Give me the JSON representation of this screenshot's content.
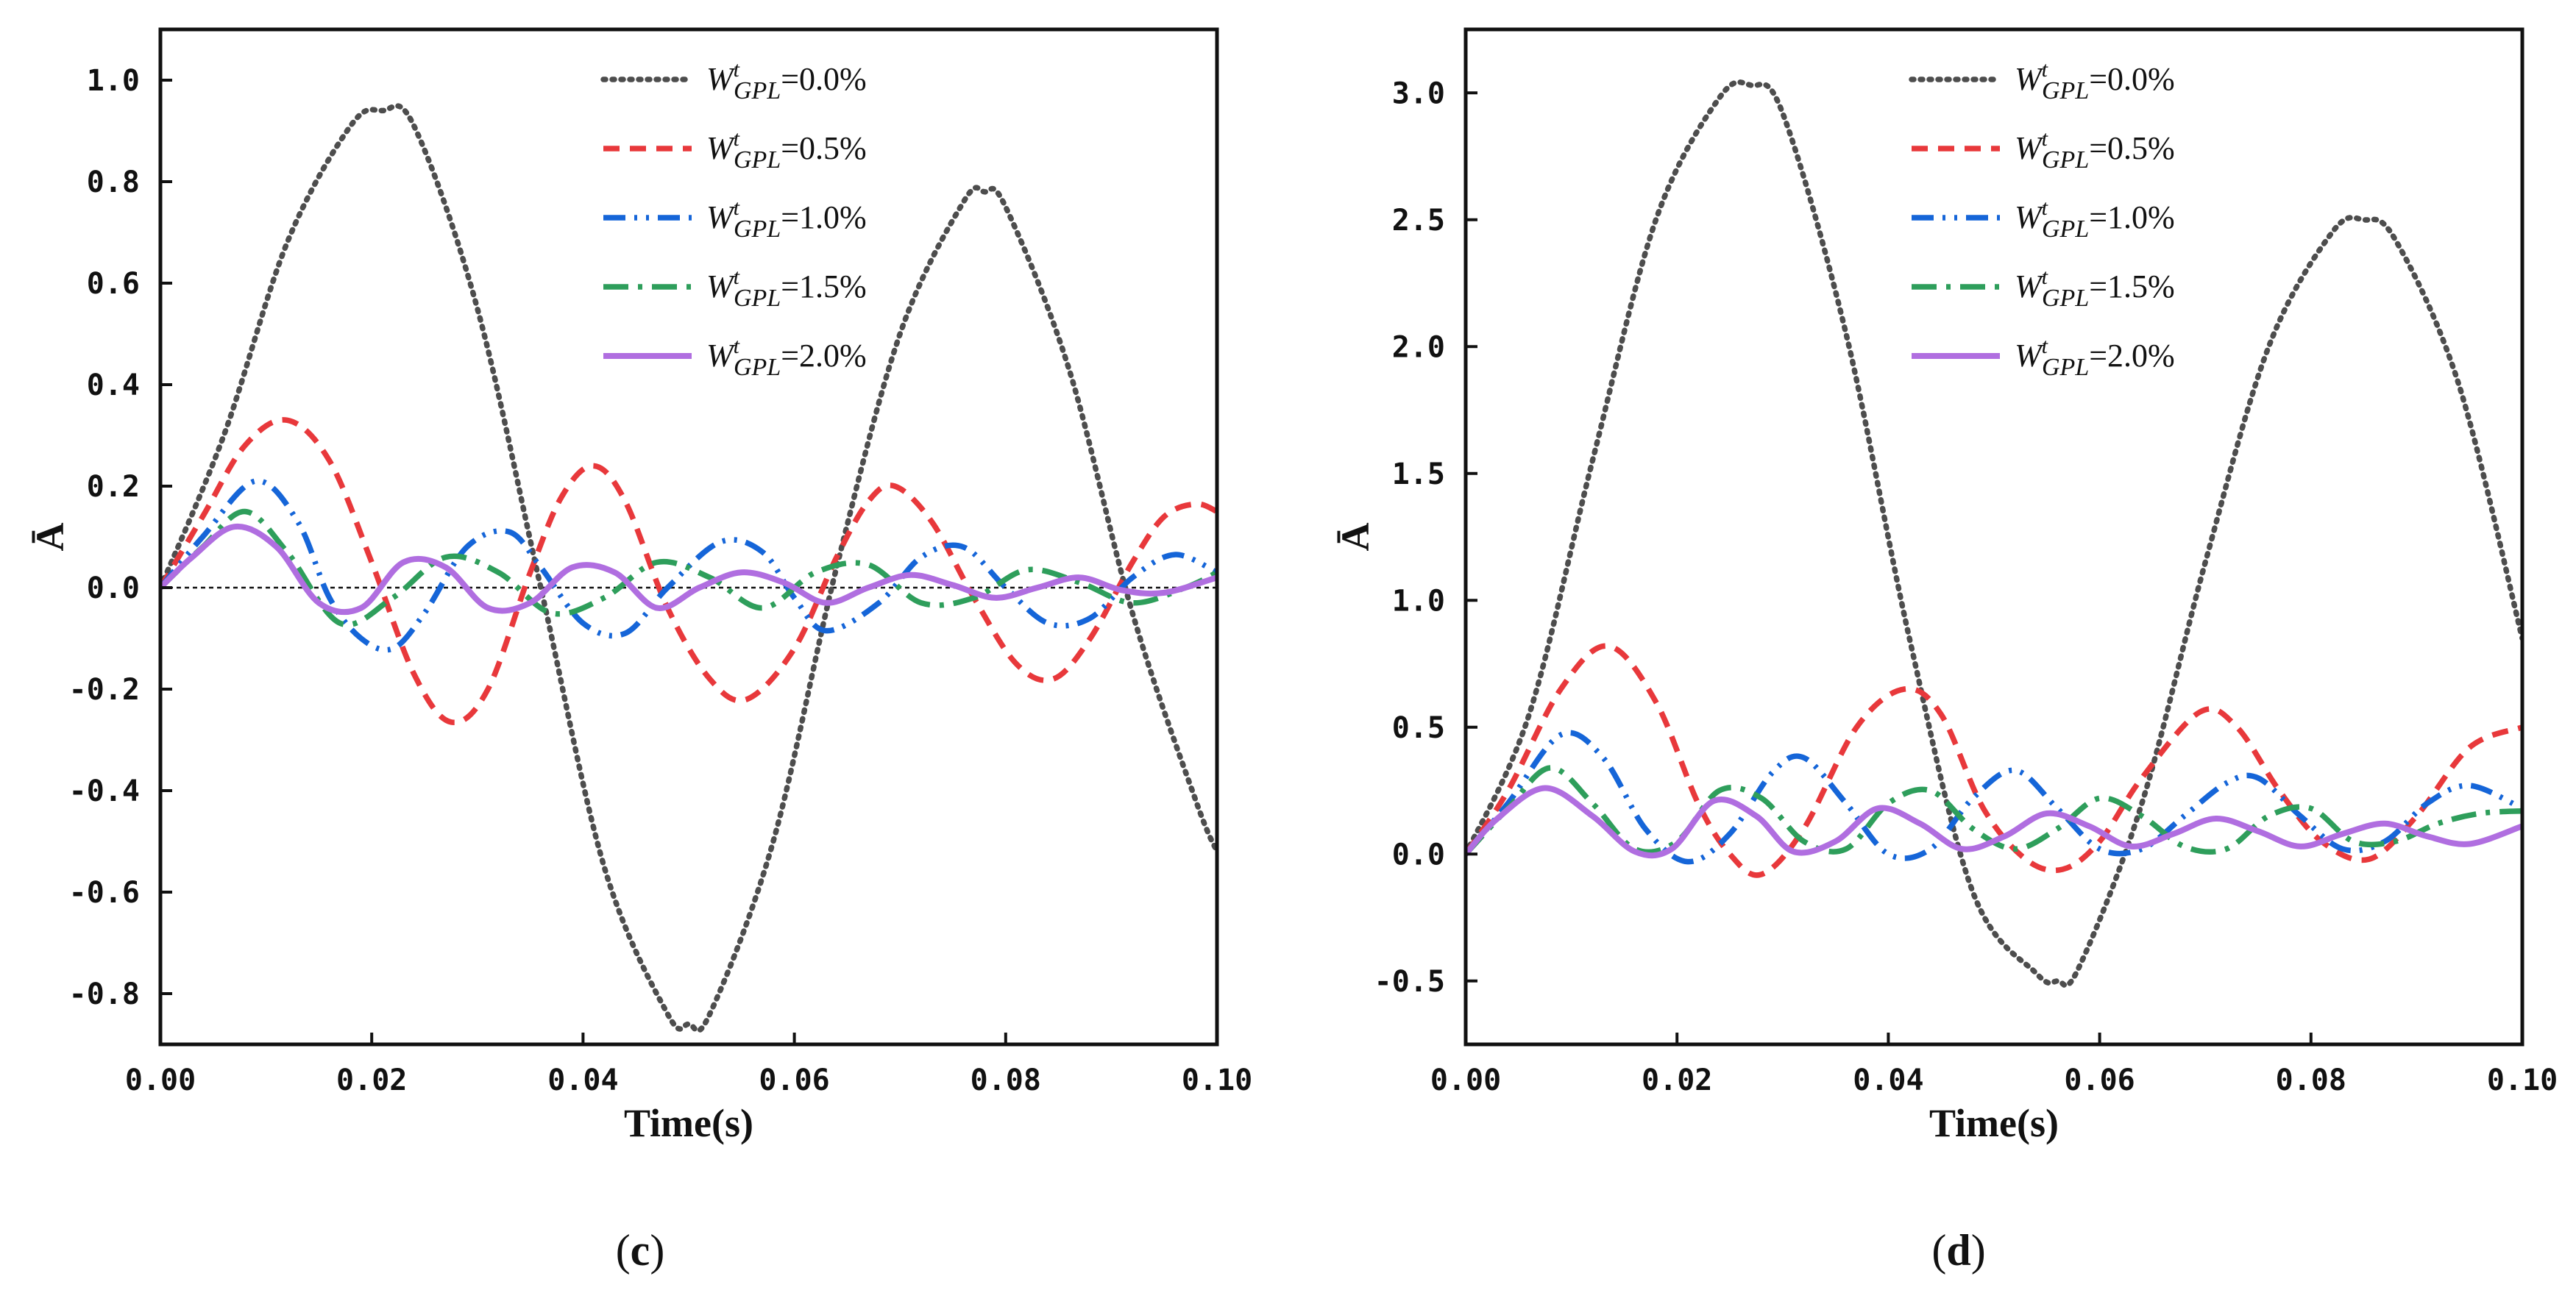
{
  "chart_data": [
    {
      "type": "line",
      "panel_label": "(c)",
      "panel_letter": "c",
      "xlabel": "Time(s)",
      "ylabel": "Ā",
      "xlim": [
        0,
        0.1
      ],
      "ylim": [
        -0.9,
        1.1
      ],
      "xticks": [
        "0.00",
        "0.02",
        "0.04",
        "0.06",
        "0.08",
        "0.10"
      ],
      "yticks": [
        "-0.8",
        "-0.6",
        "-0.4",
        "-0.2",
        "0.0",
        "0.2",
        "0.4",
        "0.6",
        "0.8",
        "1.0"
      ],
      "zero_line": true,
      "legend_position": "top-center",
      "series": [
        {
          "name": "W^t_GPL=0.0%",
          "legend_label": {
            "W": "W",
            "sup": "t",
            "sub": "GPL",
            "rest": "=0.0%"
          },
          "color": "#4d4d4d",
          "style": "dotted",
          "x": [
            0,
            0.006,
            0.012,
            0.018,
            0.021,
            0.024,
            0.03,
            0.036,
            0.042,
            0.048,
            0.05,
            0.052,
            0.058,
            0.064,
            0.07,
            0.076,
            0.078,
            0.08,
            0.086,
            0.092,
            0.098,
            0.1
          ],
          "y": [
            0,
            0.3,
            0.68,
            0.91,
            0.94,
            0.91,
            0.55,
            0.0,
            -0.55,
            -0.84,
            -0.86,
            -0.84,
            -0.5,
            0.04,
            0.5,
            0.76,
            0.78,
            0.75,
            0.43,
            -0.05,
            -0.42,
            -0.52
          ]
        },
        {
          "name": "W^t_GPL=0.5%",
          "legend_label": {
            "W": "W",
            "sup": "t",
            "sub": "GPL",
            "rest": "=0.5%"
          },
          "color": "#e8383b",
          "style": "dashed",
          "x": [
            0,
            0.004,
            0.008,
            0.012,
            0.016,
            0.02,
            0.024,
            0.0275,
            0.031,
            0.035,
            0.038,
            0.041,
            0.044,
            0.048,
            0.052,
            0.0555,
            0.06,
            0.064,
            0.067,
            0.0695,
            0.073,
            0.077,
            0.081,
            0.0845,
            0.088,
            0.092,
            0.095,
            0.098,
            0.1
          ],
          "y": [
            0,
            0.14,
            0.28,
            0.33,
            0.25,
            0.05,
            -0.17,
            -0.265,
            -0.2,
            0.03,
            0.18,
            0.24,
            0.17,
            -0.04,
            -0.18,
            -0.22,
            -0.12,
            0.06,
            0.17,
            0.2,
            0.13,
            -0.02,
            -0.15,
            -0.18,
            -0.1,
            0.05,
            0.14,
            0.165,
            0.15
          ]
        },
        {
          "name": "W^t_GPL=1.0%",
          "legend_label": {
            "W": "W",
            "sup": "t",
            "sub": "GPL",
            "rest": "=1.0%"
          },
          "color": "#1565d8",
          "style": "dashdotdot",
          "x": [
            0,
            0.004,
            0.009,
            0.013,
            0.016,
            0.019,
            0.022,
            0.025,
            0.029,
            0.033,
            0.036,
            0.04,
            0.044,
            0.048,
            0.053,
            0.057,
            0.06,
            0.063,
            0.068,
            0.072,
            0.076,
            0.08,
            0.084,
            0.088,
            0.092,
            0.096,
            0.1
          ],
          "y": [
            0,
            0.1,
            0.21,
            0.13,
            -0.02,
            -0.1,
            -0.12,
            -0.05,
            0.08,
            0.11,
            0.04,
            -0.07,
            -0.09,
            0.0,
            0.09,
            0.07,
            -0.02,
            -0.085,
            -0.03,
            0.06,
            0.08,
            0.0,
            -0.07,
            -0.06,
            0.02,
            0.065,
            0.03
          ]
        },
        {
          "name": "W^t_GPL=1.5%",
          "legend_label": {
            "W": "W",
            "sup": "t",
            "sub": "GPL",
            "rest": "=1.5%"
          },
          "color": "#2e9e5b",
          "style": "dashdot",
          "x": [
            0,
            0.004,
            0.008,
            0.012,
            0.017,
            0.022,
            0.027,
            0.032,
            0.037,
            0.042,
            0.047,
            0.052,
            0.057,
            0.062,
            0.067,
            0.072,
            0.077,
            0.082,
            0.087,
            0.092,
            0.097,
            0.1
          ],
          "y": [
            0,
            0.08,
            0.15,
            0.07,
            -0.07,
            -0.02,
            0.06,
            0.03,
            -0.05,
            -0.02,
            0.05,
            0.02,
            -0.04,
            0.03,
            0.045,
            -0.03,
            -0.02,
            0.035,
            0.01,
            -0.03,
            0.0,
            0.03
          ]
        },
        {
          "name": "W^t_GPL=2.0%",
          "legend_label": {
            "W": "W",
            "sup": "t",
            "sub": "GPL",
            "rest": "=2.0%"
          },
          "color": "#b06ee0",
          "style": "solid",
          "x": [
            0,
            0.003,
            0.007,
            0.011,
            0.015,
            0.019,
            0.023,
            0.027,
            0.031,
            0.035,
            0.039,
            0.043,
            0.047,
            0.051,
            0.055,
            0.059,
            0.063,
            0.067,
            0.071,
            0.075,
            0.079,
            0.083,
            0.087,
            0.091,
            0.095,
            0.1
          ],
          "y": [
            0,
            0.06,
            0.12,
            0.08,
            -0.03,
            -0.04,
            0.05,
            0.04,
            -0.04,
            -0.03,
            0.04,
            0.03,
            -0.04,
            0.0,
            0.03,
            0.01,
            -0.03,
            0.0,
            0.025,
            0.005,
            -0.02,
            0.0,
            0.02,
            -0.005,
            -0.01,
            0.02
          ]
        }
      ]
    },
    {
      "type": "line",
      "panel_label": "(d)",
      "panel_letter": "d",
      "xlabel": "Time(s)",
      "ylabel": "Ā",
      "xlim": [
        0,
        0.1
      ],
      "ylim": [
        -0.75,
        3.25
      ],
      "xticks": [
        "0.00",
        "0.02",
        "0.04",
        "0.06",
        "0.08",
        "0.10"
      ],
      "yticks": [
        "-0.5",
        "0.0",
        "0.5",
        "1.0",
        "1.5",
        "2.0",
        "2.5",
        "3.0"
      ],
      "zero_line": false,
      "legend_position": "top-center",
      "series": [
        {
          "name": "W^t_GPL=0.0%",
          "legend_label": {
            "W": "W",
            "sup": "t",
            "sub": "GPL",
            "rest": "=0.0%"
          },
          "color": "#4d4d4d",
          "style": "dotted",
          "x": [
            0,
            0.006,
            0.012,
            0.018,
            0.024,
            0.027,
            0.03,
            0.036,
            0.042,
            0.048,
            0.054,
            0.056,
            0.058,
            0.064,
            0.07,
            0.076,
            0.082,
            0.085,
            0.088,
            0.094,
            0.1
          ],
          "y": [
            0,
            0.55,
            1.55,
            2.5,
            2.98,
            3.03,
            2.92,
            2.05,
            0.85,
            -0.15,
            -0.47,
            -0.5,
            -0.45,
            0.2,
            1.15,
            2.0,
            2.45,
            2.5,
            2.42,
            1.85,
            0.85
          ]
        },
        {
          "name": "W^t_GPL=0.5%",
          "legend_label": {
            "W": "W",
            "sup": "t",
            "sub": "GPL",
            "rest": "=0.5%"
          },
          "color": "#e8383b",
          "style": "dashed",
          "x": [
            0,
            0.004,
            0.009,
            0.0135,
            0.018,
            0.022,
            0.025,
            0.028,
            0.032,
            0.037,
            0.0415,
            0.045,
            0.049,
            0.053,
            0.0565,
            0.06,
            0.064,
            0.0695,
            0.073,
            0.077,
            0.081,
            0.0855,
            0.09,
            0.095,
            0.1
          ],
          "y": [
            0,
            0.25,
            0.65,
            0.82,
            0.6,
            0.2,
            0.0,
            -0.08,
            0.1,
            0.5,
            0.65,
            0.55,
            0.18,
            -0.02,
            -0.06,
            0.05,
            0.3,
            0.56,
            0.5,
            0.25,
            0.05,
            -0.02,
            0.15,
            0.42,
            0.5
          ]
        },
        {
          "name": "W^t_GPL=1.0%",
          "legend_label": {
            "W": "W",
            "sup": "t",
            "sub": "GPL",
            "rest": "=1.0%"
          },
          "color": "#1565d8",
          "style": "dashdotdot",
          "x": [
            0,
            0.004,
            0.009,
            0.013,
            0.017,
            0.021,
            0.025,
            0.029,
            0.032,
            0.036,
            0.04,
            0.044,
            0.048,
            0.052,
            0.056,
            0.06,
            0.064,
            0.068,
            0.072,
            0.075,
            0.079,
            0.083,
            0.087,
            0.091,
            0.095,
            0.1
          ],
          "y": [
            0,
            0.2,
            0.47,
            0.38,
            0.1,
            -0.03,
            0.08,
            0.32,
            0.38,
            0.2,
            0.0,
            0.02,
            0.22,
            0.33,
            0.18,
            0.02,
            0.02,
            0.15,
            0.28,
            0.3,
            0.15,
            0.02,
            0.05,
            0.2,
            0.27,
            0.18
          ]
        },
        {
          "name": "W^t_GPL=1.5%",
          "legend_label": {
            "W": "W",
            "sup": "t",
            "sub": "GPL",
            "rest": "=1.5%"
          },
          "color": "#2e9e5b",
          "style": "dashdot",
          "x": [
            0,
            0.004,
            0.008,
            0.012,
            0.016,
            0.02,
            0.024,
            0.028,
            0.032,
            0.036,
            0.04,
            0.044,
            0.048,
            0.052,
            0.056,
            0.06,
            0.064,
            0.068,
            0.072,
            0.076,
            0.08,
            0.084,
            0.088,
            0.092,
            0.096,
            0.1
          ],
          "y": [
            0,
            0.18,
            0.34,
            0.2,
            0.02,
            0.05,
            0.25,
            0.22,
            0.05,
            0.02,
            0.2,
            0.25,
            0.1,
            0.02,
            0.1,
            0.22,
            0.15,
            0.03,
            0.02,
            0.15,
            0.18,
            0.05,
            0.05,
            0.12,
            0.16,
            0.17
          ]
        },
        {
          "name": "W^t_GPL=2.0%",
          "legend_label": {
            "W": "W",
            "sup": "t",
            "sub": "GPL",
            "rest": "=2.0%"
          },
          "color": "#b06ee0",
          "style": "solid",
          "x": [
            0,
            0.003,
            0.0075,
            0.012,
            0.016,
            0.0195,
            0.0235,
            0.0275,
            0.031,
            0.035,
            0.039,
            0.043,
            0.047,
            0.051,
            0.055,
            0.059,
            0.063,
            0.067,
            0.071,
            0.075,
            0.079,
            0.083,
            0.087,
            0.091,
            0.095,
            0.1
          ],
          "y": [
            0,
            0.14,
            0.26,
            0.15,
            0.01,
            0.02,
            0.21,
            0.15,
            0.01,
            0.05,
            0.18,
            0.12,
            0.02,
            0.07,
            0.16,
            0.11,
            0.03,
            0.08,
            0.14,
            0.09,
            0.03,
            0.08,
            0.12,
            0.07,
            0.04,
            0.11
          ]
        }
      ]
    }
  ]
}
